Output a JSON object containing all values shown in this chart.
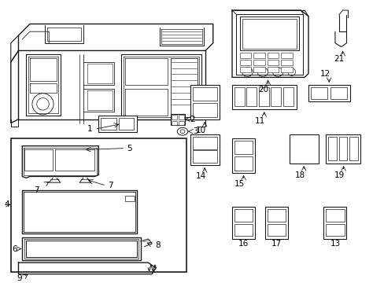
{
  "bg_color": "#ffffff",
  "line_color": "#1a1a1a",
  "label_color": "#000000",
  "figure_width": 4.89,
  "figure_height": 3.6,
  "dpi": 100,
  "font_size": 7.5
}
